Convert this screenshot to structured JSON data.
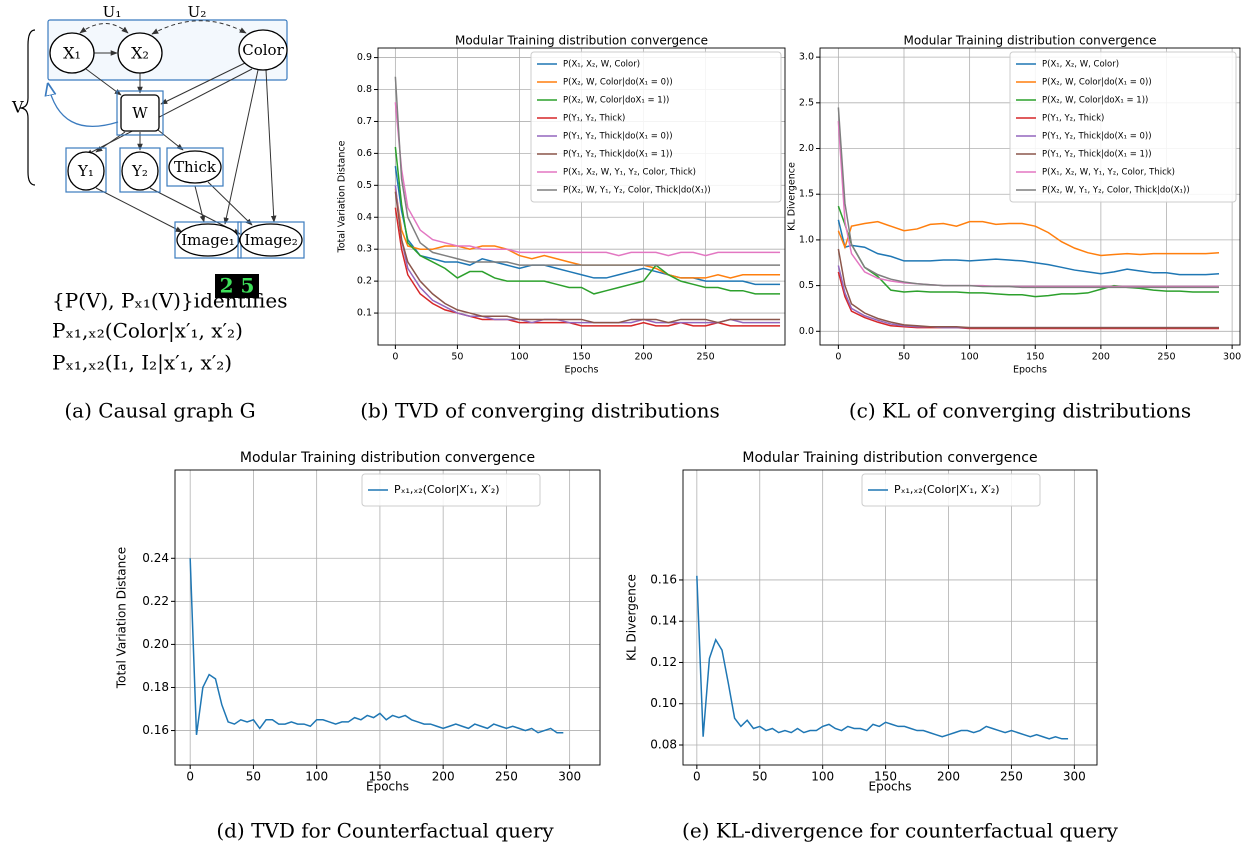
{
  "diagram": {
    "nodes": [
      "X₁",
      "X₂",
      "Color",
      "W",
      "Y₁",
      "Y₂",
      "Thick",
      "Image₁",
      "Image₂"
    ],
    "latent": [
      "U₁",
      "U₂"
    ],
    "set_label": "V",
    "image_digits": "2 5",
    "statements": [
      "{P(V), Pₓ₁(V)}identifies",
      "Pₓ₁,ₓ₂(Color|x′₁, x′₂)",
      "Pₓ₁,ₓ₂(I₁, I₂|x′₁, x′₂)"
    ],
    "caption": "(a) Causal graph G"
  },
  "chart_data": [
    {
      "type": "line",
      "title": "Modular Training distribution convergence",
      "xlabel": "Epochs",
      "ylabel": "Total Variation Distance",
      "caption": "(b) TVD of converging distributions",
      "grid": true,
      "legend": "upper right",
      "x": [
        0,
        5,
        10,
        20,
        30,
        40,
        50,
        60,
        70,
        80,
        90,
        100,
        110,
        120,
        130,
        140,
        150,
        160,
        170,
        180,
        190,
        200,
        210,
        220,
        230,
        240,
        250,
        260,
        270,
        280,
        290,
        300,
        310
      ],
      "xlim": [
        -14,
        314
      ],
      "xticks": [
        0,
        50,
        100,
        150,
        200,
        250
      ],
      "ylim": [
        0,
        0.93
      ],
      "yticks": [
        0.1,
        0.2,
        0.3,
        0.4,
        0.5,
        0.6,
        0.7,
        0.8,
        0.9
      ],
      "series": [
        {
          "name": "P(X₁, X₂, W, Color)",
          "color": "#1f77b4",
          "values": [
            0.56,
            0.42,
            0.33,
            0.28,
            0.27,
            0.26,
            0.26,
            0.25,
            0.27,
            0.26,
            0.25,
            0.24,
            0.25,
            0.25,
            0.24,
            0.23,
            0.22,
            0.21,
            0.21,
            0.22,
            0.23,
            0.24,
            0.23,
            0.22,
            0.21,
            0.21,
            0.2,
            0.2,
            0.2,
            0.2,
            0.19,
            0.19,
            0.19
          ]
        },
        {
          "name": "P(X₂, W, Color|do(X₁ = 0))",
          "color": "#ff7f0e",
          "values": [
            0.49,
            0.36,
            0.31,
            0.3,
            0.3,
            0.31,
            0.31,
            0.3,
            0.31,
            0.31,
            0.3,
            0.28,
            0.27,
            0.28,
            0.27,
            0.26,
            0.25,
            0.25,
            0.25,
            0.25,
            0.25,
            0.25,
            0.24,
            0.22,
            0.21,
            0.21,
            0.21,
            0.22,
            0.21,
            0.22,
            0.22,
            0.22,
            0.22
          ]
        },
        {
          "name": "P(X₂, W, Color|doX₁ = 1))",
          "color": "#2ca02c",
          "values": [
            0.62,
            0.44,
            0.32,
            0.28,
            0.26,
            0.24,
            0.21,
            0.23,
            0.23,
            0.21,
            0.2,
            0.2,
            0.2,
            0.2,
            0.19,
            0.18,
            0.18,
            0.16,
            0.17,
            0.18,
            0.19,
            0.2,
            0.25,
            0.22,
            0.2,
            0.19,
            0.18,
            0.18,
            0.17,
            0.17,
            0.16,
            0.16,
            0.16
          ]
        },
        {
          "name": "P(Y₁, Y₂, Thick)",
          "color": "#d62728",
          "values": [
            0.43,
            0.3,
            0.22,
            0.16,
            0.13,
            0.11,
            0.1,
            0.09,
            0.08,
            0.08,
            0.08,
            0.07,
            0.07,
            0.07,
            0.07,
            0.07,
            0.06,
            0.06,
            0.06,
            0.06,
            0.06,
            0.07,
            0.06,
            0.06,
            0.07,
            0.06,
            0.06,
            0.07,
            0.06,
            0.06,
            0.06,
            0.06,
            0.06
          ]
        },
        {
          "name": "P(Y₁, Y₂, Thick|do(X₁ = 0))",
          "color": "#9467bd",
          "values": [
            0.5,
            0.33,
            0.24,
            0.18,
            0.14,
            0.12,
            0.1,
            0.09,
            0.09,
            0.08,
            0.08,
            0.08,
            0.07,
            0.08,
            0.08,
            0.07,
            0.07,
            0.07,
            0.07,
            0.07,
            0.07,
            0.08,
            0.07,
            0.07,
            0.07,
            0.07,
            0.07,
            0.07,
            0.08,
            0.07,
            0.07,
            0.07,
            0.07
          ]
        },
        {
          "name": "P(Y₁, Y₂, Thick|do(X₁ = 1))",
          "color": "#8c564b",
          "values": [
            0.48,
            0.33,
            0.26,
            0.2,
            0.16,
            0.13,
            0.11,
            0.1,
            0.09,
            0.09,
            0.09,
            0.08,
            0.08,
            0.08,
            0.08,
            0.08,
            0.08,
            0.07,
            0.07,
            0.07,
            0.08,
            0.08,
            0.08,
            0.07,
            0.08,
            0.08,
            0.08,
            0.07,
            0.08,
            0.08,
            0.08,
            0.08,
            0.08
          ]
        },
        {
          "name": "P(X₁, X₂, W, Y₁, Y₂, Color, Thick)",
          "color": "#e377c2",
          "values": [
            0.76,
            0.55,
            0.43,
            0.36,
            0.33,
            0.32,
            0.31,
            0.31,
            0.3,
            0.3,
            0.3,
            0.29,
            0.29,
            0.29,
            0.29,
            0.29,
            0.29,
            0.29,
            0.29,
            0.28,
            0.29,
            0.29,
            0.29,
            0.28,
            0.29,
            0.29,
            0.28,
            0.29,
            0.29,
            0.29,
            0.29,
            0.29,
            0.29
          ]
        },
        {
          "name": "P(X₂, W, Y₁, Y₂, Color, Thick|do(X₁))",
          "color": "#7f7f7f",
          "values": [
            0.84,
            0.52,
            0.4,
            0.32,
            0.29,
            0.28,
            0.27,
            0.26,
            0.26,
            0.26,
            0.26,
            0.25,
            0.25,
            0.25,
            0.25,
            0.25,
            0.25,
            0.25,
            0.25,
            0.25,
            0.25,
            0.25,
            0.25,
            0.25,
            0.25,
            0.25,
            0.25,
            0.25,
            0.25,
            0.25,
            0.25,
            0.25,
            0.25
          ]
        }
      ]
    },
    {
      "type": "line",
      "title": "Modular Training distribution convergence",
      "xlabel": "Epochs",
      "ylabel": "KL Divergence",
      "caption": "(c) KL of converging distributions",
      "grid": true,
      "legend": "upper right",
      "x": [
        0,
        5,
        10,
        20,
        30,
        40,
        50,
        60,
        70,
        80,
        90,
        100,
        110,
        120,
        130,
        140,
        150,
        160,
        170,
        180,
        190,
        200,
        210,
        220,
        230,
        240,
        250,
        260,
        270,
        280,
        290
      ],
      "xlim": [
        -14,
        306
      ],
      "xticks": [
        0,
        50,
        100,
        150,
        200,
        250,
        300
      ],
      "ylim": [
        -0.15,
        3.1
      ],
      "yticks": [
        {
          "value": 0,
          "label": "0.0"
        },
        0.5,
        {
          "value": 1,
          "label": "1.0"
        },
        1.5,
        {
          "value": 2,
          "label": "2.0"
        },
        2.5,
        {
          "value": 3,
          "label": "3.0"
        }
      ],
      "series": [
        {
          "name": "P(X₁, X₂, W, Color)",
          "color": "#1f77b4",
          "values": [
            1.22,
            0.92,
            0.94,
            0.92,
            0.85,
            0.82,
            0.77,
            0.77,
            0.77,
            0.78,
            0.78,
            0.77,
            0.78,
            0.79,
            0.78,
            0.77,
            0.75,
            0.73,
            0.7,
            0.67,
            0.65,
            0.63,
            0.65,
            0.68,
            0.66,
            0.64,
            0.64,
            0.62,
            0.62,
            0.62,
            0.63
          ]
        },
        {
          "name": "P(X₂, W, Color|do(X₁ = 0))",
          "color": "#ff7f0e",
          "values": [
            1.1,
            0.92,
            1.15,
            1.18,
            1.2,
            1.15,
            1.1,
            1.12,
            1.17,
            1.18,
            1.15,
            1.2,
            1.2,
            1.17,
            1.18,
            1.18,
            1.15,
            1.08,
            0.98,
            0.91,
            0.86,
            0.83,
            0.84,
            0.85,
            0.84,
            0.85,
            0.85,
            0.85,
            0.85,
            0.85,
            0.86
          ]
        },
        {
          "name": "P(X₂, W, Color|doX₁ = 1))",
          "color": "#2ca02c",
          "values": [
            1.37,
            1.17,
            0.95,
            0.7,
            0.6,
            0.45,
            0.43,
            0.44,
            0.43,
            0.43,
            0.43,
            0.42,
            0.42,
            0.41,
            0.4,
            0.4,
            0.38,
            0.39,
            0.41,
            0.41,
            0.42,
            0.46,
            0.5,
            0.48,
            0.47,
            0.45,
            0.44,
            0.44,
            0.43,
            0.43,
            0.43
          ]
        },
        {
          "name": "P(Y₁, Y₂, Thick)",
          "color": "#d62728",
          "values": [
            0.65,
            0.38,
            0.22,
            0.15,
            0.1,
            0.06,
            0.05,
            0.04,
            0.04,
            0.04,
            0.04,
            0.03,
            0.03,
            0.03,
            0.03,
            0.03,
            0.03,
            0.03,
            0.03,
            0.03,
            0.03,
            0.03,
            0.03,
            0.03,
            0.03,
            0.03,
            0.03,
            0.03,
            0.03,
            0.03,
            0.03
          ]
        },
        {
          "name": "P(Y₁, Y₂, Thick|do(X₁ = 0))",
          "color": "#9467bd",
          "values": [
            0.72,
            0.42,
            0.25,
            0.17,
            0.12,
            0.08,
            0.06,
            0.05,
            0.05,
            0.04,
            0.04,
            0.04,
            0.04,
            0.04,
            0.04,
            0.04,
            0.04,
            0.04,
            0.04,
            0.04,
            0.04,
            0.04,
            0.04,
            0.04,
            0.04,
            0.04,
            0.04,
            0.04,
            0.04,
            0.04,
            0.04
          ]
        },
        {
          "name": "P(Y₁, Y₂, Thick|do(X₁ = 1))",
          "color": "#8c564b",
          "values": [
            0.9,
            0.5,
            0.3,
            0.2,
            0.14,
            0.1,
            0.07,
            0.06,
            0.05,
            0.05,
            0.05,
            0.04,
            0.04,
            0.04,
            0.04,
            0.04,
            0.04,
            0.04,
            0.04,
            0.04,
            0.04,
            0.04,
            0.04,
            0.04,
            0.04,
            0.04,
            0.04,
            0.04,
            0.04,
            0.04,
            0.04
          ]
        },
        {
          "name": "P(X₁, X₂, W, Y₁, Y₂, Color, Thick)",
          "color": "#e377c2",
          "values": [
            2.3,
            1.2,
            0.85,
            0.65,
            0.58,
            0.55,
            0.53,
            0.52,
            0.51,
            0.5,
            0.5,
            0.5,
            0.5,
            0.49,
            0.49,
            0.49,
            0.49,
            0.49,
            0.49,
            0.49,
            0.49,
            0.49,
            0.49,
            0.49,
            0.49,
            0.49,
            0.49,
            0.49,
            0.49,
            0.49,
            0.49
          ]
        },
        {
          "name": "P(X₂, W, Y₁, Y₂, Color, Thick|do(X₁))",
          "color": "#7f7f7f",
          "values": [
            2.45,
            1.4,
            0.95,
            0.7,
            0.62,
            0.57,
            0.54,
            0.52,
            0.51,
            0.5,
            0.5,
            0.5,
            0.49,
            0.49,
            0.49,
            0.48,
            0.48,
            0.48,
            0.48,
            0.48,
            0.48,
            0.48,
            0.48,
            0.48,
            0.48,
            0.48,
            0.48,
            0.48,
            0.48,
            0.48,
            0.48
          ]
        }
      ]
    },
    {
      "type": "line",
      "title": "Modular Training distribution convergence",
      "xlabel": "Epochs",
      "ylabel": "Total Variation Distance",
      "caption": "(d) TVD for Counterfactual query",
      "grid": true,
      "legend": "upper center",
      "x": [
        0,
        5,
        10,
        15,
        20,
        25,
        30,
        35,
        40,
        45,
        50,
        55,
        60,
        65,
        70,
        75,
        80,
        85,
        90,
        95,
        100,
        105,
        110,
        115,
        120,
        125,
        130,
        135,
        140,
        145,
        150,
        155,
        160,
        165,
        170,
        175,
        180,
        185,
        190,
        195,
        200,
        205,
        210,
        215,
        220,
        225,
        230,
        235,
        240,
        245,
        250,
        255,
        260,
        265,
        270,
        275,
        280,
        285,
        290,
        295
      ],
      "xlim": [
        -12,
        324
      ],
      "xticks": [
        0,
        50,
        100,
        150,
        200,
        250,
        300
      ],
      "ylim": [
        0.144,
        0.281
      ],
      "yticks": [
        0.16,
        0.18,
        {
          "value": 0.2,
          "label": "0.20"
        },
        0.22,
        0.24
      ],
      "series": [
        {
          "name": "Pₓ₁,ₓ₂(Color|X′₁, X′₂)",
          "color": "#1f77b4",
          "values": [
            0.24,
            0.158,
            0.18,
            0.186,
            0.184,
            0.172,
            0.164,
            0.163,
            0.165,
            0.164,
            0.165,
            0.161,
            0.165,
            0.165,
            0.163,
            0.163,
            0.164,
            0.163,
            0.163,
            0.162,
            0.165,
            0.165,
            0.164,
            0.163,
            0.164,
            0.164,
            0.166,
            0.165,
            0.167,
            0.166,
            0.168,
            0.165,
            0.167,
            0.166,
            0.167,
            0.165,
            0.164,
            0.163,
            0.163,
            0.162,
            0.161,
            0.162,
            0.163,
            0.162,
            0.161,
            0.163,
            0.162,
            0.161,
            0.163,
            0.162,
            0.161,
            0.162,
            0.161,
            0.16,
            0.161,
            0.159,
            0.16,
            0.161,
            0.159,
            0.159
          ]
        }
      ]
    },
    {
      "type": "line",
      "title": "Modular Training distribution convergence",
      "xlabel": "Epochs",
      "ylabel": "KL Divergence",
      "caption": "(e) KL-divergence for counterfactual query",
      "grid": true,
      "legend": "upper center",
      "x": [
        0,
        5,
        10,
        15,
        20,
        25,
        30,
        35,
        40,
        45,
        50,
        55,
        60,
        65,
        70,
        75,
        80,
        85,
        90,
        95,
        100,
        105,
        110,
        115,
        120,
        125,
        130,
        135,
        140,
        145,
        150,
        155,
        160,
        165,
        170,
        175,
        180,
        185,
        190,
        195,
        200,
        205,
        210,
        215,
        220,
        225,
        230,
        235,
        240,
        245,
        250,
        255,
        260,
        265,
        270,
        275,
        280,
        285,
        290,
        295
      ],
      "xlim": [
        -11,
        318
      ],
      "xticks": [
        0,
        50,
        100,
        150,
        200,
        250,
        300
      ],
      "ylim": [
        0.0703,
        0.2133
      ],
      "yticks": [
        0.08,
        {
          "value": 0.1,
          "label": "0.10"
        },
        0.12,
        0.14,
        0.16
      ],
      "series": [
        {
          "name": "Pₓ₁,ₓ₂(Color|X′₁, X′₂)",
          "color": "#1f77b4",
          "values": [
            0.162,
            0.084,
            0.122,
            0.131,
            0.126,
            0.11,
            0.093,
            0.089,
            0.092,
            0.088,
            0.089,
            0.087,
            0.088,
            0.086,
            0.087,
            0.086,
            0.088,
            0.086,
            0.087,
            0.087,
            0.089,
            0.09,
            0.088,
            0.087,
            0.089,
            0.088,
            0.088,
            0.087,
            0.09,
            0.089,
            0.091,
            0.09,
            0.089,
            0.089,
            0.088,
            0.087,
            0.087,
            0.086,
            0.085,
            0.084,
            0.085,
            0.086,
            0.087,
            0.087,
            0.086,
            0.087,
            0.089,
            0.088,
            0.087,
            0.086,
            0.087,
            0.086,
            0.085,
            0.084,
            0.085,
            0.084,
            0.083,
            0.084,
            0.083,
            0.083
          ]
        }
      ]
    }
  ]
}
